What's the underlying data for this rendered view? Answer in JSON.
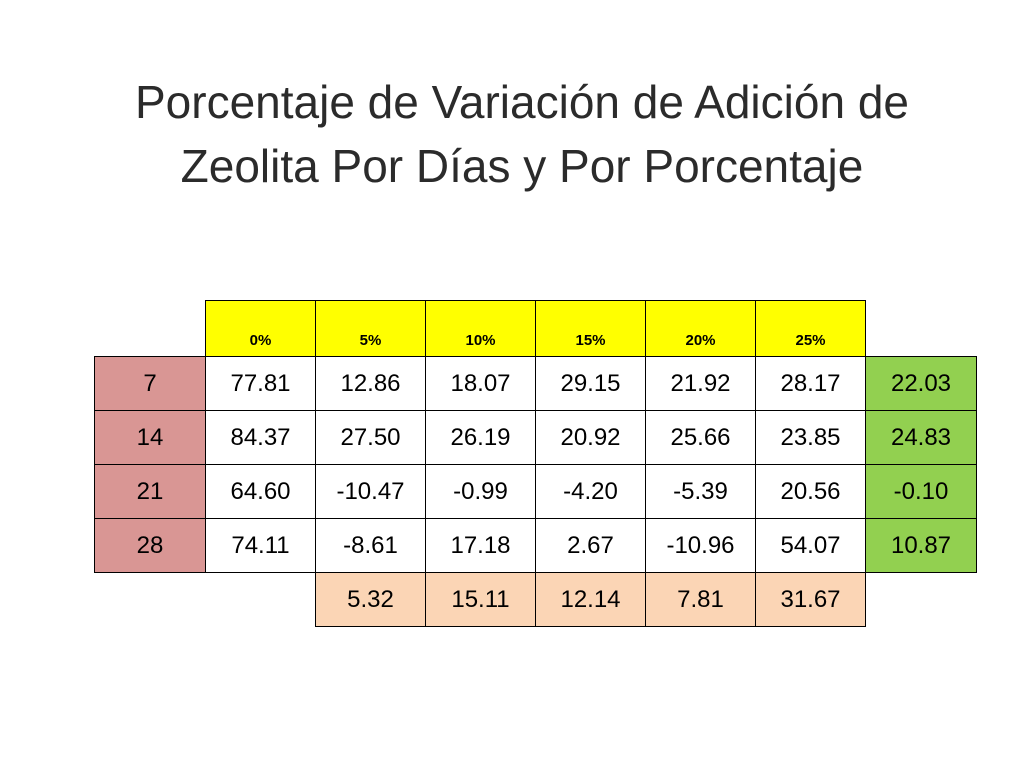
{
  "title": {
    "line1": "Porcentaje de Variación de Adición de",
    "line2": "Zeolita Por Días y Por Porcentaje"
  },
  "colors": {
    "header": "#ffff00",
    "days": "#d99694",
    "row_avg": "#92d050",
    "col_avg": "#fbd5b5"
  },
  "chart_data": {
    "type": "table",
    "columns": [
      "0%",
      "5%",
      "10%",
      "15%",
      "20%",
      "25%"
    ],
    "rows": [
      {
        "day": "7",
        "values": [
          "77.81",
          "12.86",
          "18.07",
          "29.15",
          "21.92",
          "28.17"
        ],
        "avg": "22.03"
      },
      {
        "day": "14",
        "values": [
          "84.37",
          "27.50",
          "26.19",
          "20.92",
          "25.66",
          "23.85"
        ],
        "avg": "24.83"
      },
      {
        "day": "21",
        "values": [
          "64.60",
          "-10.47",
          "-0.99",
          "-4.20",
          "-5.39",
          "20.56"
        ],
        "avg": "-0.10"
      },
      {
        "day": "28",
        "values": [
          "74.11",
          "-8.61",
          "17.18",
          "2.67",
          "-10.96",
          "54.07"
        ],
        "avg": "10.87"
      }
    ],
    "column_avgs": [
      "5.32",
      "15.11",
      "12.14",
      "7.81",
      "31.67"
    ]
  }
}
